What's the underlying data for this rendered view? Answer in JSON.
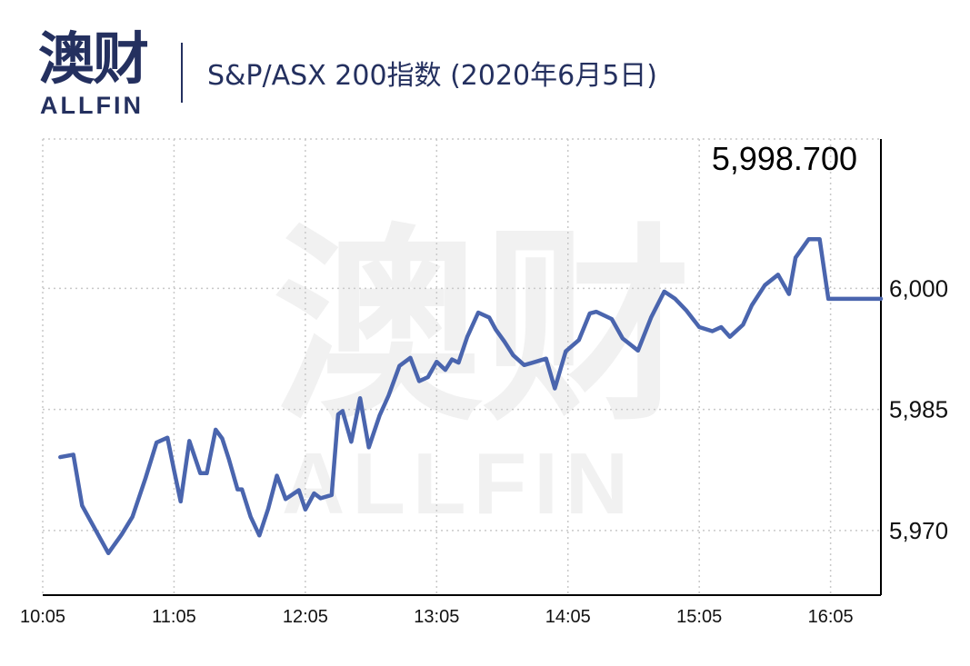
{
  "header": {
    "logo_cn": "澳财",
    "logo_en": "ALLFIN",
    "title": "S&P/ASX 200指数 (2020年6月5日)"
  },
  "watermark": {
    "cn": "澳财",
    "en": "ALLFIN"
  },
  "colors": {
    "line": "#4a65ae",
    "brand": "#24305f",
    "grid": "#c9c9c9"
  },
  "chart_data": {
    "type": "line",
    "title": "S&P/ASX 200指数 (2020年6月5日)",
    "xlabel": "",
    "ylabel": "",
    "x_ticks": [
      "10:05",
      "11:05",
      "12:05",
      "13:05",
      "14:05",
      "15:05",
      "16:05"
    ],
    "x_tick_minutes": [
      605,
      665,
      725,
      785,
      845,
      905,
      965
    ],
    "xlim_minutes": [
      605,
      988
    ],
    "y_ticks": [
      5970,
      5985,
      6000
    ],
    "y_tick_labels": [
      "5,970",
      "5,985",
      "6,000"
    ],
    "ylim": [
      5962,
      6018.5
    ],
    "grid": true,
    "annotation": {
      "text": "5,998.700",
      "value": 5998.7
    },
    "series": [
      {
        "x": [
          613,
          619,
          623,
          627,
          635,
          641,
          646,
          652,
          657,
          662,
          665,
          668,
          672,
          677,
          680,
          684,
          687,
          690,
          694,
          696,
          700,
          704,
          708,
          712,
          716,
          722,
          725,
          729,
          732,
          737,
          740,
          742,
          746,
          750,
          754,
          759,
          763,
          768,
          773,
          777,
          781,
          785,
          789,
          792,
          795,
          799,
          804,
          809,
          812,
          816,
          820,
          825,
          829,
          835,
          839,
          844,
          850,
          855,
          858,
          865,
          870,
          877,
          883,
          889,
          894,
          899,
          905,
          911,
          915,
          919,
          925,
          929,
          935,
          941,
          946,
          949,
          955,
          960,
          964,
          968,
          972,
          978,
          988
        ],
        "y": [
          5979.1,
          5979.4,
          5973.1,
          5971.1,
          5967.2,
          5969.5,
          5971.7,
          5976.5,
          5980.9,
          5981.5,
          5977.5,
          5973.6,
          5981.1,
          5977.1,
          5977.1,
          5982.5,
          5981.4,
          5978.9,
          5975.1,
          5975.1,
          5971.7,
          5969.4,
          5972.7,
          5976.8,
          5973.9,
          5975.0,
          5972.6,
          5974.6,
          5974.0,
          5974.4,
          5984.4,
          5984.8,
          5981.0,
          5986.4,
          5980.3,
          5984.3,
          5986.7,
          5990.4,
          5991.4,
          5988.5,
          5989.0,
          5990.9,
          5989.9,
          5991.2,
          5990.8,
          5994.0,
          5997.0,
          5996.4,
          5994.9,
          5993.4,
          5991.7,
          5990.5,
          5990.8,
          5991.3,
          5987.6,
          5992.2,
          5993.6,
          5996.9,
          5997.1,
          5996.2,
          5993.8,
          5992.3,
          5996.4,
          5999.6,
          5998.7,
          5997.3,
          5995.2,
          5994.7,
          5995.2,
          5994.0,
          5995.5,
          5997.9,
          6000.4,
          6001.7,
          5999.3,
          6003.8,
          6006.1,
          6006.1,
          5998.7,
          5998.7,
          5998.7,
          5998.7,
          5998.7
        ]
      }
    ]
  }
}
